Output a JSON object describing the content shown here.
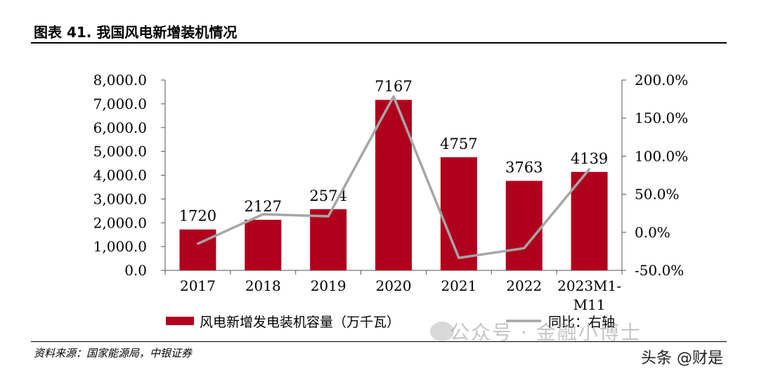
{
  "header": {
    "title": "图表 41. 我国风电新增装机情况"
  },
  "footer": {
    "source": "资料来源：国家能源局，中银证券"
  },
  "watermark": {
    "text": "公众号 · 金融小博士",
    "brand": "头条 @财是"
  },
  "colors": {
    "bar": "#b0001e",
    "line": "#a6a6a6"
  },
  "chart_data": {
    "type": "bar",
    "categories": [
      "2017",
      "2018",
      "2019",
      "2020",
      "2021",
      "2022",
      "2023M1-M11"
    ],
    "category_lines": [
      [
        "2017"
      ],
      [
        "2018"
      ],
      [
        "2019"
      ],
      [
        "2020"
      ],
      [
        "2021"
      ],
      [
        "2022"
      ],
      [
        "2023M1-",
        "M11"
      ]
    ],
    "series": [
      {
        "name": "风电新增发电装机容量（万千瓦）",
        "type": "bar",
        "axis": "left",
        "values": [
          1720,
          2127,
          2574,
          7167,
          4757,
          3763,
          4139
        ],
        "data_labels": [
          "1720",
          "2127",
          "2574",
          "7167",
          "4757",
          "3763",
          "4139"
        ]
      },
      {
        "name": "同比：右轴",
        "type": "line",
        "axis": "right",
        "values": [
          -15.0,
          23.7,
          21.0,
          178.4,
          -33.6,
          -20.9,
          83.0
        ]
      }
    ],
    "ylim_left": [
      0,
      8000
    ],
    "ylim_right": [
      -50,
      200
    ],
    "left_ticks": [
      "0.0",
      "1,000.0",
      "2,000.0",
      "3,000.0",
      "4,000.0",
      "5,000.0",
      "6,000.0",
      "7,000.0",
      "8,000.0"
    ],
    "right_ticks": [
      "-50.0%",
      "0.0%",
      "50.0%",
      "100.0%",
      "150.0%",
      "200.0%"
    ],
    "legend": {
      "bar_label": "风电新增发电装机容量（万千瓦）",
      "line_label": "同比：右轴",
      "placement": "bottom"
    }
  }
}
